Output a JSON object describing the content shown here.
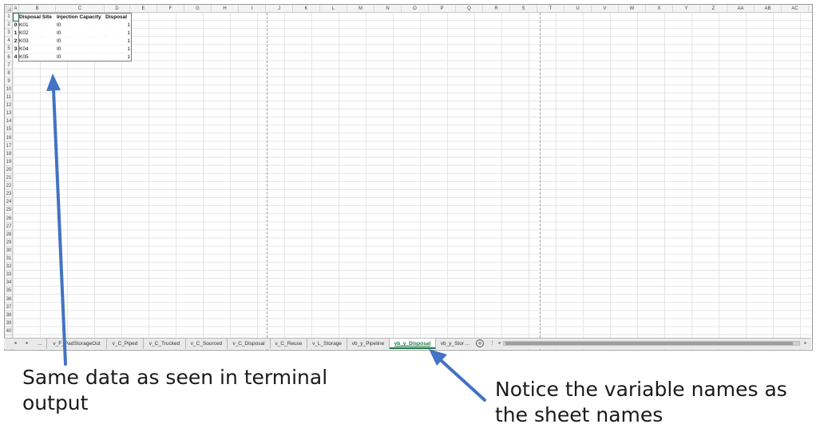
{
  "window": {
    "title": ""
  },
  "columns": [
    "A",
    "B",
    "C",
    "D",
    "E",
    "F",
    "G",
    "H",
    "I",
    "J",
    "K",
    "L",
    "M",
    "N",
    "O",
    "P",
    "Q",
    "R",
    "S",
    "T",
    "U",
    "V",
    "W",
    "X",
    "Y",
    "Z",
    "AA",
    "AB",
    "AC"
  ],
  "rows": [
    "1",
    "2",
    "3",
    "4",
    "5",
    "6",
    "7",
    "8",
    "9",
    "10",
    "11",
    "12",
    "13",
    "14",
    "15",
    "16",
    "17",
    "18",
    "19",
    "20",
    "21",
    "22",
    "23",
    "24",
    "25",
    "26",
    "27",
    "28",
    "29",
    "30",
    "31",
    "32",
    "33",
    "34",
    "35",
    "36",
    "37",
    "38",
    "39",
    "40"
  ],
  "table": {
    "headers": [
      "Disposal Site",
      "Injection Capacity",
      "Disposal"
    ],
    "data": [
      {
        "index": "0",
        "site": "K01",
        "capacity": "I0",
        "disposal": "1"
      },
      {
        "index": "1",
        "site": "K02",
        "capacity": "I0",
        "disposal": "1"
      },
      {
        "index": "2",
        "site": "K03",
        "capacity": "I0",
        "disposal": "1"
      },
      {
        "index": "3",
        "site": "K04",
        "capacity": "I0",
        "disposal": "1"
      },
      {
        "index": "4",
        "site": "K05",
        "capacity": "I0",
        "disposal": "1"
      }
    ]
  },
  "tabs": {
    "prev_arrow": "◂",
    "next_arrow": "▸",
    "ellipsis_left": "...",
    "items": [
      {
        "label": "v_F_PadStorageOut",
        "active": false
      },
      {
        "label": "v_C_Piped",
        "active": false
      },
      {
        "label": "v_C_Trucked",
        "active": false
      },
      {
        "label": "v_C_Sourced",
        "active": false
      },
      {
        "label": "v_C_Disposal",
        "active": false
      },
      {
        "label": "v_C_Reuse",
        "active": false
      },
      {
        "label": "v_L_Storage",
        "active": false
      },
      {
        "label": "vb_y_Pipeline",
        "active": false
      },
      {
        "label": "vb_y_Disposal",
        "active": true
      },
      {
        "label": "vb_y_Stor ...",
        "active": false
      }
    ],
    "add_icon": "+",
    "more_icon": "⋮"
  },
  "annotations": {
    "left": "Same data as seen in terminal\noutput",
    "right": "Notice the variable names as\nthe sheet names",
    "arrow_color": "#4472C4"
  }
}
